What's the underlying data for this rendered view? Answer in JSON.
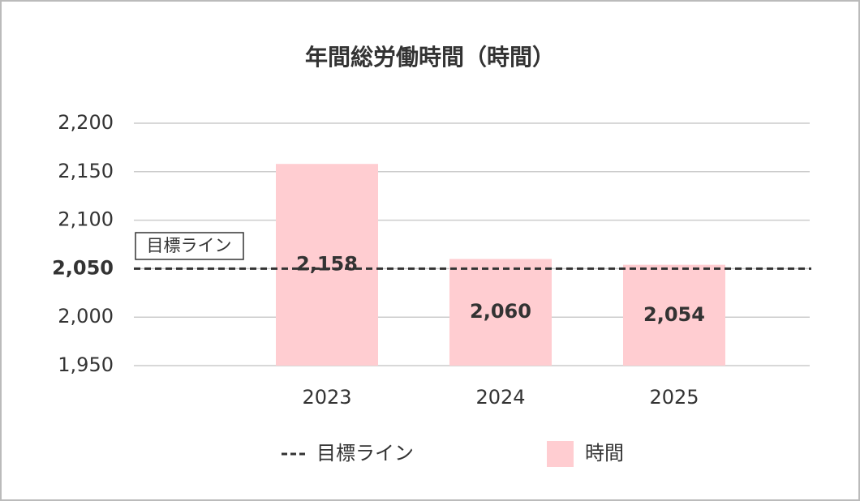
{
  "chart_data": {
    "type": "bar",
    "title": "年間総労働時間（時間）",
    "categories": [
      "2023",
      "2024",
      "2025"
    ],
    "series": [
      {
        "name": "時間",
        "color": "#ffcdd1",
        "values": [
          2158,
          2060,
          2054
        ],
        "value_labels": [
          "2,158",
          "2,060",
          "2,054"
        ]
      }
    ],
    "target": {
      "name": "目標ライン",
      "value": 2050
    },
    "ylim": [
      1950,
      2200
    ],
    "yticks": [
      {
        "value": 1950,
        "label": "1,950"
      },
      {
        "value": 2000,
        "label": "2,000"
      },
      {
        "value": 2050,
        "label": "2,050"
      },
      {
        "value": 2100,
        "label": "2,100"
      },
      {
        "value": 2150,
        "label": "2,150"
      },
      {
        "value": 2200,
        "label": "2,200"
      }
    ],
    "grid": true
  }
}
